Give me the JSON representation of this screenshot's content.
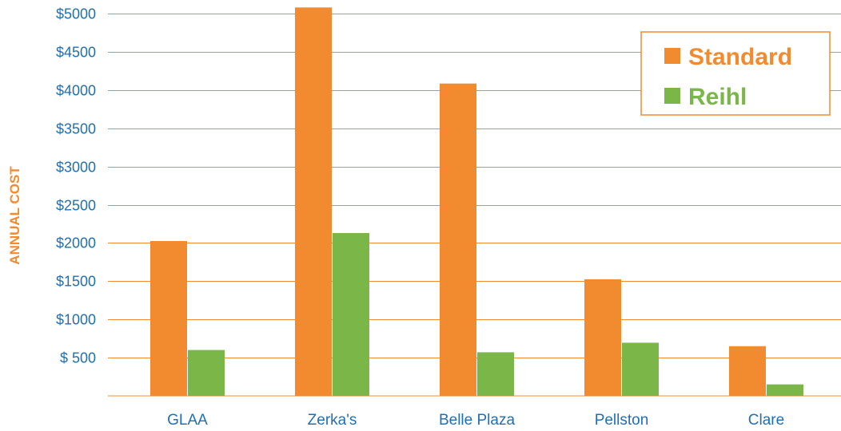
{
  "chart_data": {
    "type": "bar",
    "categories": [
      "GLAA",
      "Zerka's",
      "Belle Plaza",
      "Pellston",
      "Clare"
    ],
    "series": [
      {
        "name": "Standard",
        "values": [
          2025,
          5080,
          4085,
          1525,
          650
        ]
      },
      {
        "name": "Reihl",
        "values": [
          600,
          2130,
          570,
          695,
          150
        ]
      }
    ],
    "ylabel": "ANNUAL COST",
    "xlabel": "",
    "ylim": [
      0,
      5000
    ],
    "yticks": [
      500,
      1000,
      1500,
      2000,
      2500,
      3000,
      3500,
      4000,
      4500,
      5000
    ],
    "ytick_labels": [
      "$ 500",
      "$1000",
      "$1500",
      "$2000",
      "$2500",
      "$3000",
      "$3500",
      "$4000",
      "$4500",
      "$5000"
    ],
    "grid": true,
    "legend_position": "top-right",
    "colors": {
      "Standard": "#f28a30",
      "Reihl": "#7ab648",
      "gridline": "#f28a30",
      "tick_text": "#1f6fb5",
      "ylabel_text": "#f28a30"
    }
  }
}
